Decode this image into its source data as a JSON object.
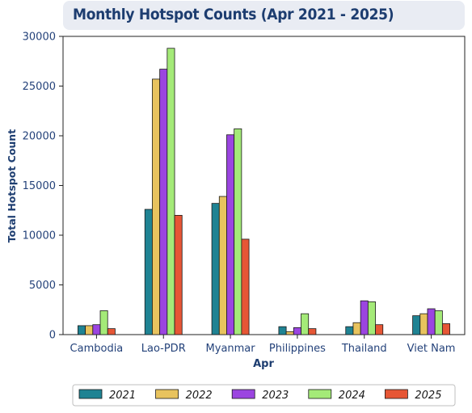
{
  "chart_data": {
    "type": "bar",
    "title": "Monthly Hotspot Counts (Apr 2021 - 2025)",
    "xlabel": "Apr",
    "ylabel": "Total Hotspot Count",
    "ylim": [
      0,
      30000
    ],
    "yticks": [
      0,
      5000,
      10000,
      15000,
      20000,
      25000,
      30000
    ],
    "categories": [
      "Cambodia",
      "Lao-PDR",
      "Myanmar",
      "Philippines",
      "Thailand",
      "Viet Nam"
    ],
    "series": [
      {
        "name": "2021",
        "color": "#1f8393",
        "values": [
          900,
          12600,
          13200,
          800,
          800,
          1900
        ]
      },
      {
        "name": "2022",
        "color": "#e8c35e",
        "values": [
          900,
          25700,
          13900,
          300,
          1200,
          2100
        ]
      },
      {
        "name": "2023",
        "color": "#9b45e0",
        "values": [
          1000,
          26700,
          20100,
          700,
          3400,
          2600
        ]
      },
      {
        "name": "2024",
        "color": "#a4ea78",
        "values": [
          2400,
          28800,
          20700,
          2100,
          3300,
          2400
        ]
      },
      {
        "name": "2025",
        "color": "#e65635",
        "values": [
          600,
          12000,
          9600,
          600,
          1000,
          1100
        ]
      }
    ],
    "legend_position": "bottom",
    "grid": false
  }
}
